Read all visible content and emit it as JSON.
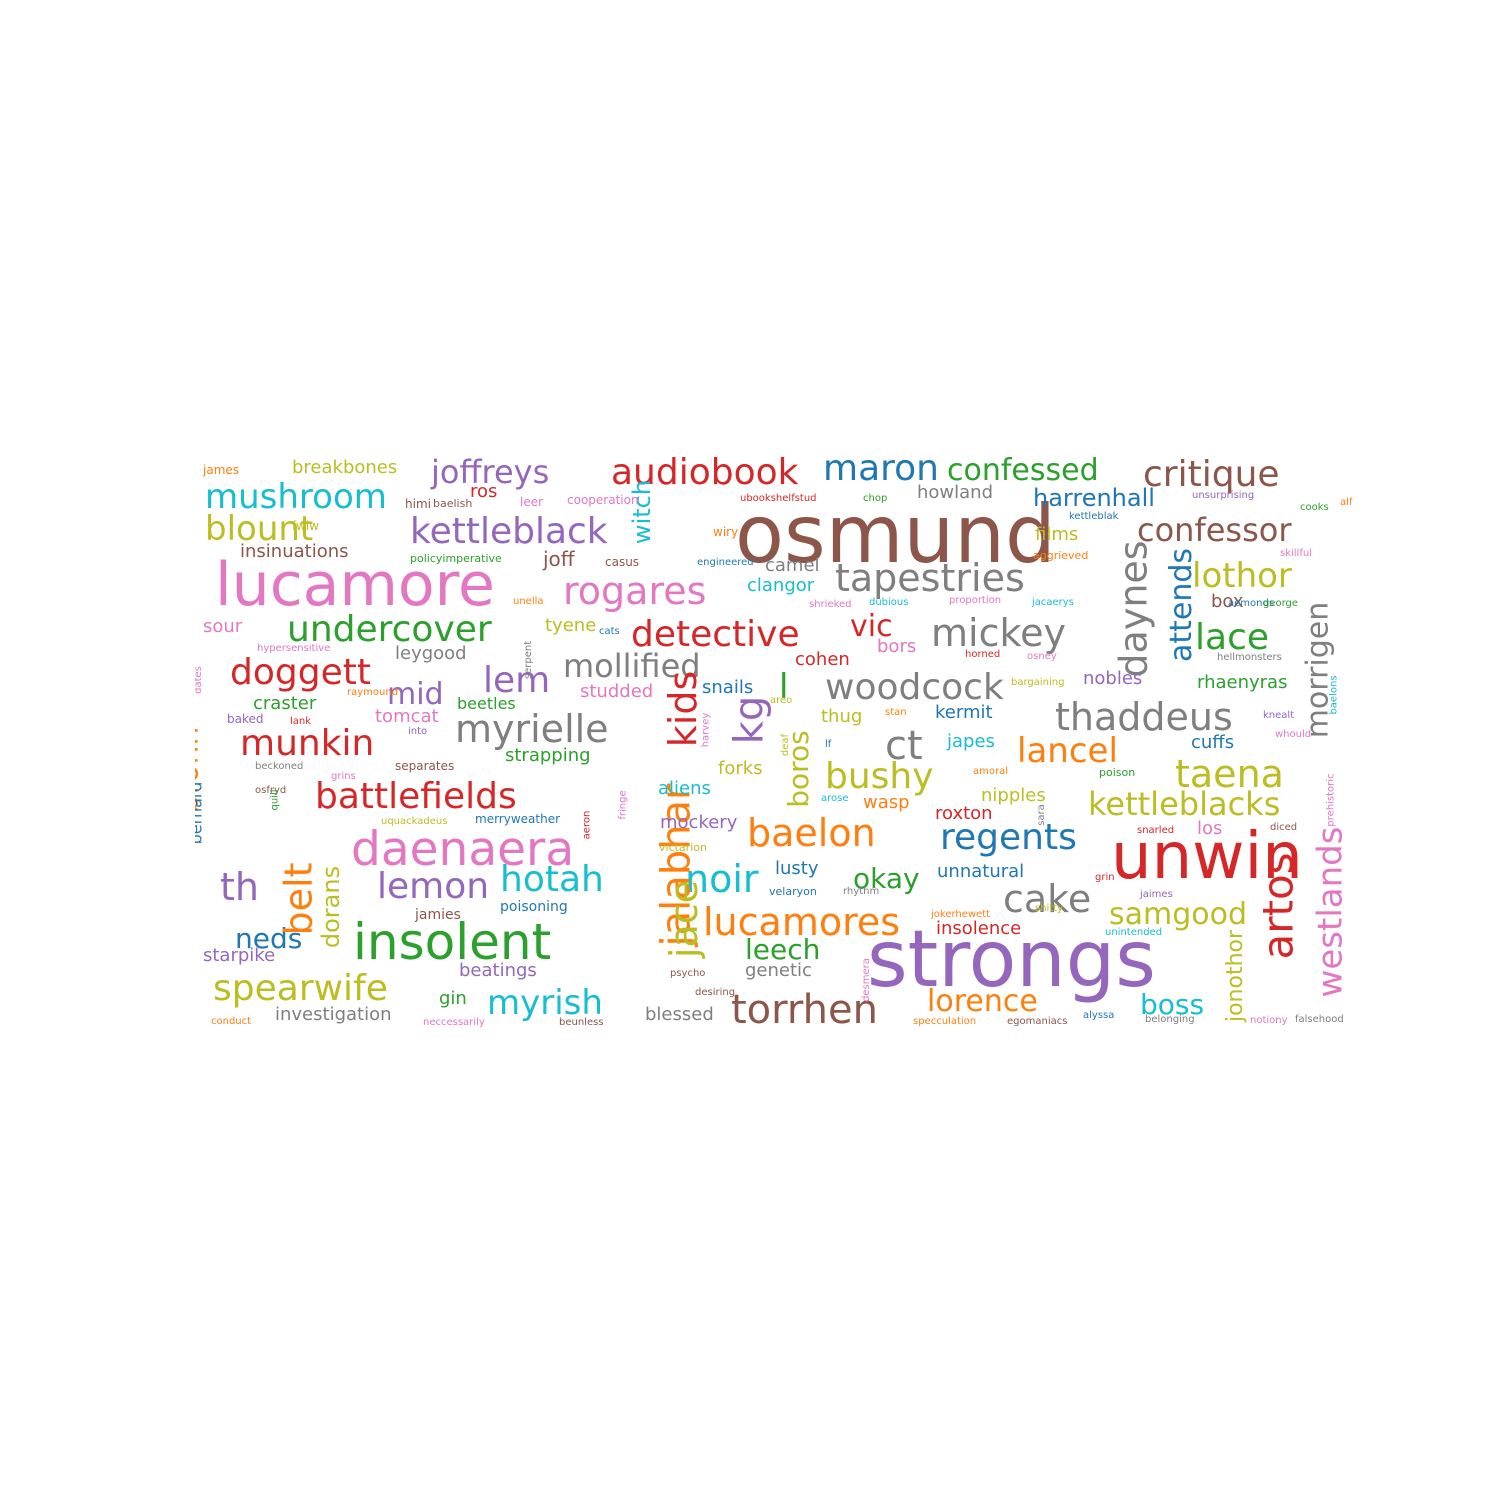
{
  "colors": {
    "blue": "#1f77b4",
    "orange": "#ff7f0e",
    "green": "#2ca02c",
    "red": "#d62728",
    "purple": "#9467bd",
    "brown": "#8c564b",
    "pink": "#e377c2",
    "gray": "#7f7f7f",
    "olive": "#bcbd22",
    "cyan": "#17becf"
  },
  "words": [
    {
      "text": "osmund",
      "color": "brown"
    },
    {
      "text": "strongs",
      "color": "purple"
    },
    {
      "text": "unwin",
      "color": "red"
    },
    {
      "text": "lucamore",
      "color": "pink"
    },
    {
      "text": "insolent",
      "color": "green"
    },
    {
      "text": "daenaera",
      "color": "pink"
    },
    {
      "text": "audiobook",
      "color": "red"
    },
    {
      "text": "maron",
      "color": "blue"
    },
    {
      "text": "confessed",
      "color": "green"
    },
    {
      "text": "critique",
      "color": "brown"
    },
    {
      "text": "joffreys",
      "color": "purple"
    },
    {
      "text": "mushroom",
      "color": "cyan"
    },
    {
      "text": "kettleblack",
      "color": "purple"
    },
    {
      "text": "blount",
      "color": "olive"
    },
    {
      "text": "confessor",
      "color": "brown"
    },
    {
      "text": "harrenhall",
      "color": "blue"
    },
    {
      "text": "tapestries",
      "color": "gray"
    },
    {
      "text": "rogares",
      "color": "pink"
    },
    {
      "text": "lothor",
      "color": "olive"
    },
    {
      "text": "undercover",
      "color": "green"
    },
    {
      "text": "detective",
      "color": "red"
    },
    {
      "text": "mickey",
      "color": "gray"
    },
    {
      "text": "lace",
      "color": "green"
    },
    {
      "text": "doggett",
      "color": "red"
    },
    {
      "text": "mollified",
      "color": "gray"
    },
    {
      "text": "lem",
      "color": "purple"
    },
    {
      "text": "woodcock",
      "color": "gray"
    },
    {
      "text": "thaddeus",
      "color": "gray"
    },
    {
      "text": "munkin",
      "color": "red"
    },
    {
      "text": "myrielle",
      "color": "gray"
    },
    {
      "text": "ct",
      "color": "gray"
    },
    {
      "text": "lancel",
      "color": "orange"
    },
    {
      "text": "taena",
      "color": "olive"
    },
    {
      "text": "battlefields",
      "color": "red"
    },
    {
      "text": "bushy",
      "color": "olive"
    },
    {
      "text": "kettleblacks",
      "color": "olive"
    },
    {
      "text": "baelon",
      "color": "orange"
    },
    {
      "text": "regents",
      "color": "blue"
    },
    {
      "text": "th",
      "color": "purple"
    },
    {
      "text": "lemon",
      "color": "purple"
    },
    {
      "text": "hotah",
      "color": "cyan"
    },
    {
      "text": "noir",
      "color": "cyan"
    },
    {
      "text": "okay",
      "color": "green"
    },
    {
      "text": "cake",
      "color": "gray"
    },
    {
      "text": "samgood",
      "color": "olive"
    },
    {
      "text": "lucamores",
      "color": "orange"
    },
    {
      "text": "leech",
      "color": "green"
    },
    {
      "text": "neds",
      "color": "blue"
    },
    {
      "text": "spearwife",
      "color": "olive"
    },
    {
      "text": "myrish",
      "color": "cyan"
    },
    {
      "text": "torrhen",
      "color": "brown"
    },
    {
      "text": "lorence",
      "color": "orange"
    },
    {
      "text": "boss",
      "color": "cyan"
    },
    {
      "text": "mid",
      "color": "purple"
    },
    {
      "text": "vic",
      "color": "red"
    },
    {
      "text": "kids",
      "color": "red"
    },
    {
      "text": "kg",
      "color": "purple"
    },
    {
      "text": "jalabhar",
      "color": "orange"
    },
    {
      "text": "jace",
      "color": "olive"
    },
    {
      "text": "belt",
      "color": "orange"
    },
    {
      "text": "bronn",
      "color": "orange"
    },
    {
      "text": "daynes",
      "color": "gray"
    },
    {
      "text": "attends",
      "color": "blue"
    },
    {
      "text": "morrigen",
      "color": "gray"
    },
    {
      "text": "artos",
      "color": "red"
    },
    {
      "text": "westlands",
      "color": "pink"
    },
    {
      "text": "witch",
      "color": "cyan"
    },
    {
      "text": "boros",
      "color": "olive"
    },
    {
      "text": "dorans",
      "color": "olive"
    },
    {
      "text": "jonothor",
      "color": "olive"
    },
    {
      "text": "l",
      "color": "green"
    },
    {
      "text": "breakbones",
      "color": "olive"
    },
    {
      "text": "howland",
      "color": "gray"
    },
    {
      "text": "insinuations",
      "color": "brown"
    },
    {
      "text": "joff",
      "color": "brown"
    },
    {
      "text": "films",
      "color": "olive"
    },
    {
      "text": "tyene",
      "color": "olive"
    },
    {
      "text": "sour",
      "color": "pink"
    },
    {
      "text": "leygood",
      "color": "gray"
    },
    {
      "text": "cohen",
      "color": "red"
    },
    {
      "text": "bors",
      "color": "pink"
    },
    {
      "text": "clangor",
      "color": "cyan"
    },
    {
      "text": "camel",
      "color": "gray"
    },
    {
      "text": "box",
      "color": "brown"
    },
    {
      "text": "studded",
      "color": "pink"
    },
    {
      "text": "snails",
      "color": "blue"
    },
    {
      "text": "nobles",
      "color": "purple"
    },
    {
      "text": "rhaenyras",
      "color": "green"
    },
    {
      "text": "craster",
      "color": "green"
    },
    {
      "text": "tomcat",
      "color": "pink"
    },
    {
      "text": "beetles",
      "color": "green"
    },
    {
      "text": "strapping",
      "color": "green"
    },
    {
      "text": "thug",
      "color": "olive"
    },
    {
      "text": "kermit",
      "color": "blue"
    },
    {
      "text": "japes",
      "color": "cyan"
    },
    {
      "text": "cuffs",
      "color": "blue"
    },
    {
      "text": "forks",
      "color": "olive"
    },
    {
      "text": "aliens",
      "color": "cyan"
    },
    {
      "text": "nipples",
      "color": "olive"
    },
    {
      "text": "wasp",
      "color": "orange"
    },
    {
      "text": "roxton",
      "color": "red"
    },
    {
      "text": "mockery",
      "color": "purple"
    },
    {
      "text": "los",
      "color": "pink"
    },
    {
      "text": "lusty",
      "color": "blue"
    },
    {
      "text": "unnatural",
      "color": "blue"
    },
    {
      "text": "insolence",
      "color": "red"
    },
    {
      "text": "poisoning",
      "color": "blue"
    },
    {
      "text": "jamies",
      "color": "brown"
    },
    {
      "text": "starpike",
      "color": "purple"
    },
    {
      "text": "beatings",
      "color": "purple"
    },
    {
      "text": "genetic",
      "color": "gray"
    },
    {
      "text": "gin",
      "color": "green"
    },
    {
      "text": "investigation",
      "color": "gray"
    },
    {
      "text": "blessed",
      "color": "gray"
    },
    {
      "text": "bernard",
      "color": "blue"
    },
    {
      "text": "ros",
      "color": "red"
    },
    {
      "text": "james",
      "color": "orange"
    },
    {
      "text": "fwiw",
      "color": "olive"
    },
    {
      "text": "himi",
      "color": "brown"
    },
    {
      "text": "baelish",
      "color": "brown"
    },
    {
      "text": "leer",
      "color": "pink"
    },
    {
      "text": "cooperation",
      "color": "pink"
    },
    {
      "text": "ubookshelfstud",
      "color": "red"
    },
    {
      "text": "chop",
      "color": "green"
    },
    {
      "text": "unsurprising",
      "color": "purple"
    },
    {
      "text": "cooks",
      "color": "green"
    },
    {
      "text": "alf",
      "color": "orange"
    },
    {
      "text": "kettleblak",
      "color": "blue"
    },
    {
      "text": "wiry",
      "color": "orange"
    },
    {
      "text": "policyimperative",
      "color": "green"
    },
    {
      "text": "casus",
      "color": "brown"
    },
    {
      "text": "engineered",
      "color": "blue"
    },
    {
      "text": "aggrieved",
      "color": "orange"
    },
    {
      "text": "skillful",
      "color": "pink"
    },
    {
      "text": "unella",
      "color": "orange"
    },
    {
      "text": "shrieked",
      "color": "pink"
    },
    {
      "text": "dubious",
      "color": "cyan"
    },
    {
      "text": "proportion",
      "color": "pink"
    },
    {
      "text": "jacaerys",
      "color": "cyan"
    },
    {
      "text": "aemonds",
      "color": "blue"
    },
    {
      "text": "george",
      "color": "green"
    },
    {
      "text": "cats",
      "color": "blue"
    },
    {
      "text": "hypersensitive",
      "color": "pink"
    },
    {
      "text": "serpent",
      "color": "gray"
    },
    {
      "text": "horned",
      "color": "red"
    },
    {
      "text": "osney",
      "color": "pink"
    },
    {
      "text": "hellmonsters",
      "color": "gray"
    },
    {
      "text": "dates",
      "color": "pink"
    },
    {
      "text": "raymound",
      "color": "orange"
    },
    {
      "text": "bargaining",
      "color": "olive"
    },
    {
      "text": "baelons",
      "color": "cyan"
    },
    {
      "text": "baked",
      "color": "purple"
    },
    {
      "text": "lank",
      "color": "red"
    },
    {
      "text": "into",
      "color": "purple"
    },
    {
      "text": "harvey",
      "color": "pink"
    },
    {
      "text": "areo",
      "color": "olive"
    },
    {
      "text": "stan",
      "color": "orange"
    },
    {
      "text": "knealt",
      "color": "purple"
    },
    {
      "text": "whould",
      "color": "pink"
    },
    {
      "text": "deaf",
      "color": "olive"
    },
    {
      "text": "lf",
      "color": "blue"
    },
    {
      "text": "beckoned",
      "color": "gray"
    },
    {
      "text": "separates",
      "color": "brown"
    },
    {
      "text": "grins",
      "color": "pink"
    },
    {
      "text": "amoral",
      "color": "orange"
    },
    {
      "text": "poison",
      "color": "green"
    },
    {
      "text": "osfryd",
      "color": "brown"
    },
    {
      "text": "quill",
      "color": "green"
    },
    {
      "text": "arose",
      "color": "cyan"
    },
    {
      "text": "prehistoric",
      "color": "pink"
    },
    {
      "text": "uquackadeus",
      "color": "olive"
    },
    {
      "text": "merryweather",
      "color": "blue"
    },
    {
      "text": "fringe",
      "color": "pink"
    },
    {
      "text": "aeron",
      "color": "red"
    },
    {
      "text": "sara",
      "color": "gray"
    },
    {
      "text": "snarled",
      "color": "red"
    },
    {
      "text": "diced",
      "color": "brown"
    },
    {
      "text": "lightbringer",
      "color": "pink"
    },
    {
      "text": "victarion",
      "color": "olive"
    },
    {
      "text": "velaryon",
      "color": "blue"
    },
    {
      "text": "rhythm",
      "color": "gray"
    },
    {
      "text": "grin",
      "color": "red"
    },
    {
      "text": "jaimes",
      "color": "purple"
    },
    {
      "text": "jokerhewett",
      "color": "orange"
    },
    {
      "text": "shitty",
      "color": "olive"
    },
    {
      "text": "unintended",
      "color": "cyan"
    },
    {
      "text": "psycho",
      "color": "brown"
    },
    {
      "text": "desiring",
      "color": "brown"
    },
    {
      "text": "desmera",
      "color": "pink"
    },
    {
      "text": "conduct",
      "color": "orange"
    },
    {
      "text": "neccessarily",
      "color": "pink"
    },
    {
      "text": "beunless",
      "color": "brown"
    },
    {
      "text": "specculation",
      "color": "orange"
    },
    {
      "text": "egomaniacs",
      "color": "brown"
    },
    {
      "text": "alyssa",
      "color": "blue"
    },
    {
      "text": "belonging",
      "color": "gray"
    },
    {
      "text": "notiony",
      "color": "pink"
    },
    {
      "text": "falsehood",
      "color": "gray"
    }
  ]
}
